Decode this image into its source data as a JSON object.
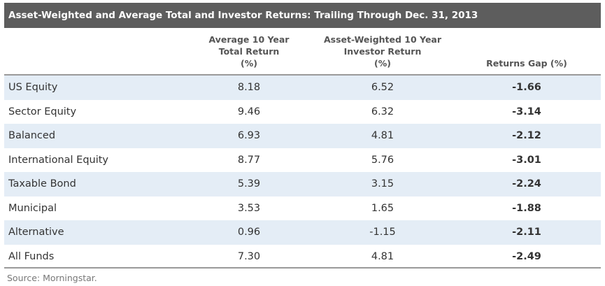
{
  "chart_data": {
    "type": "table",
    "title": "Asset-Weighted and Average Total and Investor Returns: Trailing Through Dec. 31, 2013",
    "columns": [
      {
        "lines": [
          "Average 10 Year",
          "Total Return",
          "(%)"
        ]
      },
      {
        "lines": [
          "Asset-Weighted 10 Year",
          "Investor Return",
          "(%)"
        ]
      },
      {
        "lines": [
          "Returns Gap (%)"
        ]
      }
    ],
    "rows": [
      {
        "label": "US Equity",
        "total_return": "8.18",
        "investor_return": "6.52",
        "returns_gap": "-1.66"
      },
      {
        "label": "Sector Equity",
        "total_return": "9.46",
        "investor_return": "6.32",
        "returns_gap": "-3.14"
      },
      {
        "label": "Balanced",
        "total_return": "6.93",
        "investor_return": "4.81",
        "returns_gap": "-2.12"
      },
      {
        "label": "International Equity",
        "total_return": "8.77",
        "investor_return": "5.76",
        "returns_gap": "-3.01"
      },
      {
        "label": "Taxable Bond",
        "total_return": "5.39",
        "investor_return": "3.15",
        "returns_gap": "-2.24"
      },
      {
        "label": "Municipal",
        "total_return": "3.53",
        "investor_return": "1.65",
        "returns_gap": "-1.88"
      },
      {
        "label": "Alternative",
        "total_return": "0.96",
        "investor_return": "-1.15",
        "returns_gap": "-2.11"
      },
      {
        "label": "All Funds",
        "total_return": "7.30",
        "investor_return": "4.81",
        "returns_gap": "-2.49"
      }
    ],
    "source": "Source: Morningstar."
  },
  "colors": {
    "title_bg": "#5d5d5d",
    "title_text": "#ffffff",
    "row_shade": "#e4edf6",
    "rule": "#9a9a9a",
    "text": "#333333",
    "source_text": "#777777"
  }
}
